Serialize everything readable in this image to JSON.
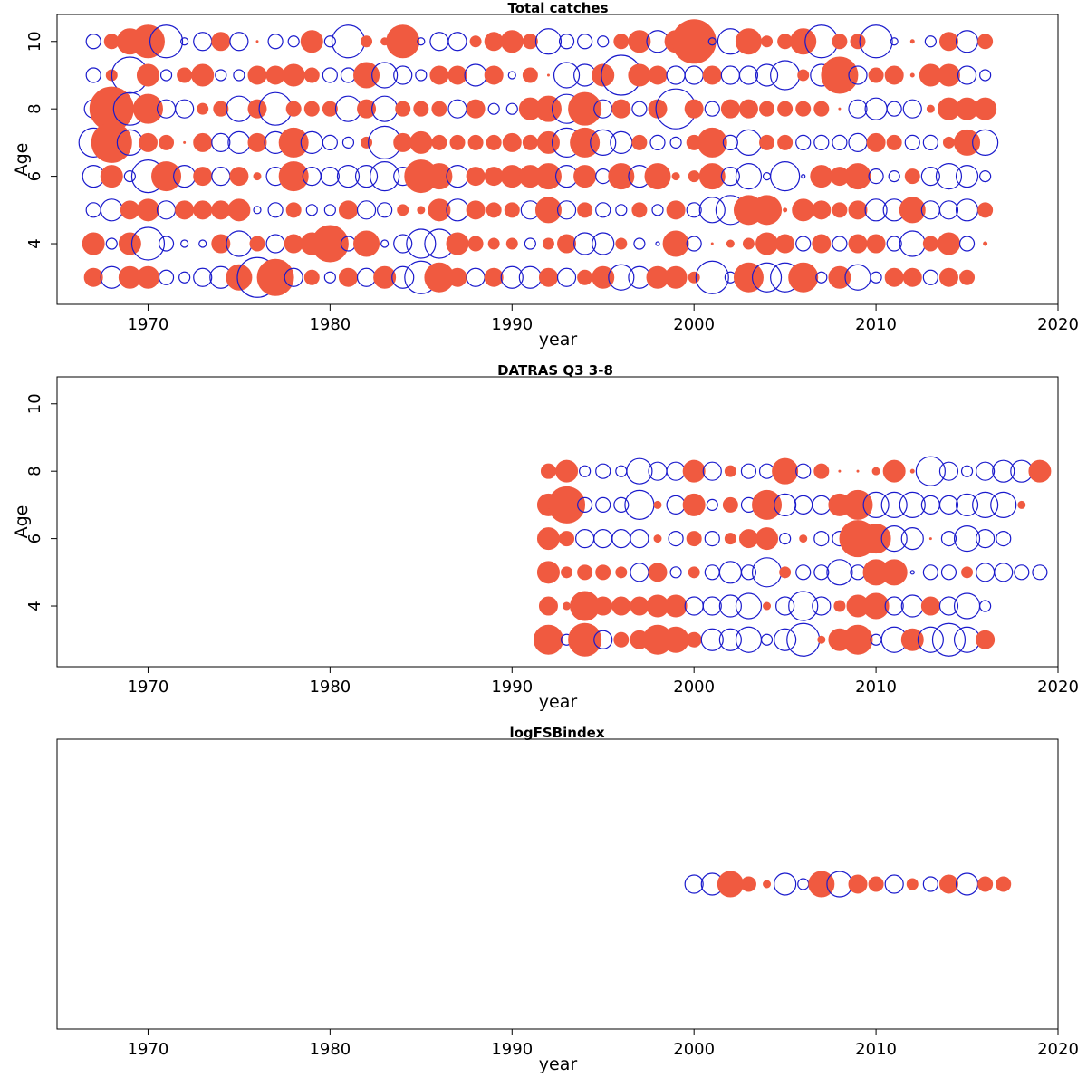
{
  "colors": {
    "positive": "#f05a40",
    "negative": "#1a1acc",
    "axis": "#000000"
  },
  "chart_data": [
    {
      "type": "scatter",
      "title": "Total catches",
      "xlabel": "year",
      "ylabel": "Age",
      "xlim": [
        1965,
        2020
      ],
      "ylim": [
        2.2,
        10.8
      ],
      "xticks": [
        1970,
        1980,
        1990,
        2000,
        2010,
        2020
      ],
      "yticks": [
        4,
        6,
        8,
        10
      ],
      "encoding": "bubble size = |residual|; filled red = positive, open blue = negative",
      "rows": [
        {
          "age": 10,
          "startYear": 1967,
          "values": [
            -0.4,
            0.4,
            0.7,
            0.9,
            -0.9,
            -0.2,
            -0.5,
            0.5,
            -0.5,
            0.05,
            -0.4,
            -0.3,
            0.6,
            -0.3,
            -0.9,
            0.3,
            0.2,
            0.9,
            -0.2,
            -0.5,
            -0.5,
            0.3,
            0.5,
            0.6,
            0.4,
            -0.7,
            -0.4,
            -0.4,
            -0.3,
            0.4,
            0.6,
            -0.6,
            0.6,
            1.2,
            -0.2,
            -0.7,
            0.7,
            0.3,
            0.4,
            0.7,
            -0.9,
            0.4,
            0.4,
            -0.9,
            -0.2,
            0.1,
            -0.3,
            0.5,
            -0.6,
            0.4
          ]
        },
        {
          "age": 9,
          "startYear": 1967,
          "values": [
            -0.4,
            0.3,
            -1.0,
            0.6,
            -0.3,
            0.4,
            0.6,
            -0.3,
            -0.3,
            0.5,
            0.5,
            0.6,
            0.4,
            -0.4,
            -0.4,
            0.7,
            -0.7,
            -0.5,
            -0.3,
            0.5,
            0.5,
            -0.6,
            0.5,
            -0.2,
            0.4,
            0.05,
            -0.7,
            -0.6,
            0.6,
            -1.1,
            0.6,
            0.5,
            -0.5,
            -0.5,
            0.5,
            -0.5,
            -0.5,
            -0.6,
            -0.8,
            0.3,
            -0.6,
            1.0,
            -0.5,
            0.4,
            0.5,
            0.1,
            0.6,
            0.6,
            -0.5,
            -0.3
          ]
        },
        {
          "age": 8,
          "startYear": 1967,
          "values": [
            -0.5,
            1.2,
            -0.9,
            0.8,
            -0.5,
            -0.5,
            0.3,
            0.4,
            -0.7,
            0.5,
            -0.9,
            0.4,
            0.4,
            0.4,
            -0.7,
            0.5,
            -0.7,
            0.4,
            0.4,
            0.4,
            -0.5,
            0.5,
            -0.3,
            -0.3,
            0.6,
            0.7,
            -0.8,
            0.9,
            -0.5,
            0.5,
            -0.4,
            0.5,
            -1.1,
            0.5,
            -0.4,
            0.5,
            0.5,
            0.4,
            0.4,
            0.4,
            0.4,
            0.05,
            -0.5,
            -0.6,
            -0.4,
            -0.5,
            0.2,
            0.6,
            0.6,
            0.6
          ]
        },
        {
          "age": 7,
          "startYear": 1967,
          "values": [
            -0.8,
            1.1,
            -0.7,
            0.5,
            0.4,
            0.05,
            0.5,
            -0.5,
            -0.6,
            0.5,
            -0.6,
            0.8,
            -0.6,
            -0.4,
            -0.3,
            0.3,
            -0.9,
            0.5,
            0.6,
            0.4,
            0.4,
            0.4,
            0.4,
            0.5,
            0.4,
            0.6,
            -0.8,
            0.8,
            -0.7,
            -0.6,
            0.4,
            -0.4,
            -0.3,
            0.4,
            0.8,
            -0.4,
            -0.7,
            0.4,
            0.4,
            -0.4,
            -0.4,
            -0.4,
            -0.5,
            0.5,
            0.4,
            -0.4,
            -0.4,
            0.3,
            0.7,
            -0.7
          ]
        },
        {
          "age": 6,
          "startYear": 1967,
          "values": [
            -0.6,
            0.6,
            -0.3,
            -0.9,
            0.8,
            -0.6,
            0.5,
            -0.5,
            0.5,
            0.2,
            -0.5,
            0.8,
            -0.5,
            -0.5,
            -0.6,
            -0.6,
            -0.8,
            -0.5,
            0.9,
            0.7,
            -0.6,
            0.5,
            0.5,
            0.6,
            0.6,
            0.7,
            -0.6,
            0.6,
            -0.4,
            0.7,
            -0.6,
            0.7,
            0.2,
            0.3,
            0.7,
            -0.5,
            -0.7,
            -0.2,
            -0.8,
            -0.1,
            0.6,
            0.5,
            0.7,
            -0.4,
            -0.3,
            0.4,
            -0.5,
            -0.7,
            -0.6,
            -0.3
          ]
        },
        {
          "age": 5,
          "startYear": 1967,
          "values": [
            -0.4,
            -0.6,
            0.5,
            0.6,
            -0.5,
            0.5,
            0.5,
            0.5,
            0.6,
            -0.2,
            -0.4,
            0.4,
            -0.3,
            -0.3,
            0.5,
            -0.5,
            -0.4,
            0.3,
            0.2,
            0.6,
            -0.6,
            0.5,
            0.4,
            0.4,
            -0.5,
            0.7,
            -0.5,
            0.4,
            -0.4,
            -0.3,
            0.4,
            -0.3,
            0.5,
            -0.4,
            -0.7,
            -0.8,
            0.8,
            0.8,
            0.1,
            0.6,
            0.5,
            0.4,
            0.5,
            -0.6,
            -0.6,
            0.7,
            -0.5,
            -0.5,
            -0.6,
            0.4
          ]
        },
        {
          "age": 4,
          "startYear": 1967,
          "values": [
            0.6,
            -0.3,
            0.6,
            -0.9,
            -0.4,
            -0.2,
            -0.2,
            0.5,
            -0.7,
            0.4,
            -0.5,
            0.5,
            0.6,
            1.0,
            -0.4,
            0.7,
            -0.2,
            -0.5,
            -0.8,
            -0.8,
            0.6,
            0.4,
            0.3,
            0.3,
            -0.3,
            0.3,
            0.5,
            -0.6,
            -0.6,
            0.3,
            -0.3,
            -0.1,
            0.7,
            -0.4,
            0.05,
            0.2,
            0.3,
            0.6,
            0.5,
            -0.4,
            0.5,
            -0.4,
            0.5,
            0.5,
            -0.4,
            -0.7,
            0.4,
            0.6,
            -0.4,
            0.1
          ]
        },
        {
          "age": 3,
          "startYear": 1967,
          "values": [
            0.5,
            -0.6,
            0.6,
            0.6,
            -0.4,
            -0.3,
            -0.5,
            -0.6,
            0.7,
            -1.1,
            1.0,
            -0.5,
            0.4,
            -0.3,
            0.5,
            -0.5,
            0.6,
            -0.6,
            -0.9,
            0.8,
            0.5,
            -0.5,
            0.5,
            -0.6,
            -0.6,
            0.5,
            -0.5,
            0.4,
            0.6,
            -0.7,
            -0.6,
            0.6,
            0.6,
            0.3,
            -0.9,
            -0.3,
            0.8,
            -0.8,
            -0.8,
            0.8,
            -0.3,
            0.6,
            -0.7,
            -0.3,
            0.5,
            0.5,
            -0.4,
            0.5,
            0.4
          ]
        }
      ]
    },
    {
      "type": "scatter",
      "title": "DATRAS Q3 3-8",
      "xlabel": "year",
      "ylabel": "Age",
      "xlim": [
        1965,
        2020
      ],
      "ylim": [
        2.2,
        10.8
      ],
      "xticks": [
        1970,
        1980,
        1990,
        2000,
        2010,
        2020
      ],
      "yticks": [
        4,
        6,
        8,
        10
      ],
      "encoding": "bubble size = |residual|; filled red = positive, open blue = negative",
      "rows": [
        {
          "age": 8,
          "startYear": 1992,
          "values": [
            0.4,
            0.6,
            -0.3,
            -0.4,
            -0.3,
            -0.7,
            -0.5,
            -0.5,
            0.6,
            -0.5,
            0.3,
            -0.4,
            -0.4,
            0.7,
            -0.4,
            0.4,
            0.05,
            0.05,
            0.2,
            0.6,
            0.1,
            -0.8,
            -0.5,
            -0.3,
            -0.5,
            -0.6,
            -0.6,
            0.6
          ]
        },
        {
          "age": 7,
          "startYear": 1992,
          "values": [
            0.6,
            1.0,
            -0.4,
            -0.4,
            -0.4,
            -0.8,
            0.2,
            -0.5,
            0.6,
            -0.3,
            0.4,
            -0.4,
            0.8,
            -0.6,
            -0.5,
            -0.5,
            0.6,
            0.8,
            -0.7,
            -0.7,
            -0.7,
            -0.5,
            -0.5,
            -0.6,
            -0.7,
            -0.7,
            0.2
          ]
        },
        {
          "age": 6,
          "startYear": 1992,
          "values": [
            0.6,
            0.4,
            -0.5,
            -0.5,
            -0.5,
            -0.5,
            0.2,
            -0.4,
            0.4,
            -0.4,
            0.3,
            0.5,
            0.6,
            -0.3,
            0.2,
            -0.4,
            -0.4,
            1.0,
            0.8,
            -0.7,
            -0.6,
            0.05,
            -0.4,
            -0.7,
            -0.5,
            -0.4
          ]
        },
        {
          "age": 5,
          "startYear": 1992,
          "values": [
            0.6,
            0.3,
            0.4,
            0.4,
            0.3,
            -0.5,
            0.5,
            -0.3,
            0.3,
            -0.4,
            -0.6,
            -0.4,
            -0.8,
            0.3,
            -0.4,
            -0.4,
            -0.7,
            -0.4,
            0.7,
            0.7,
            -0.1,
            -0.4,
            -0.4,
            0.3,
            -0.5,
            -0.5,
            -0.4,
            -0.4
          ]
        },
        {
          "age": 4,
          "startYear": 1992,
          "values": [
            0.5,
            0.2,
            0.8,
            0.5,
            0.5,
            0.5,
            0.6,
            0.6,
            -0.5,
            -0.5,
            -0.6,
            -0.7,
            0.2,
            -0.5,
            -0.8,
            -0.5,
            0.3,
            0.6,
            0.7,
            -0.5,
            -0.6,
            0.5,
            -0.5,
            -0.7,
            -0.3
          ]
        },
        {
          "age": 3,
          "startYear": 1992,
          "values": [
            0.8,
            -0.3,
            0.9,
            -0.5,
            0.4,
            0.5,
            0.8,
            0.7,
            0.4,
            -0.6,
            -0.6,
            -0.7,
            -0.3,
            -0.6,
            -0.9,
            0.2,
            0.6,
            0.8,
            -0.3,
            -0.7,
            0.6,
            -0.7,
            -0.9,
            -0.7,
            0.5
          ]
        }
      ]
    },
    {
      "type": "scatter",
      "title": "logFSBindex",
      "xlabel": "year",
      "ylabel": "",
      "xlim": [
        1965,
        2020
      ],
      "xticks": [
        1970,
        1980,
        1990,
        2000,
        2010,
        2020
      ],
      "yticks": [],
      "encoding": "bubble size = |residual|; filled red = positive, open blue = negative",
      "rows": [
        {
          "age": 1,
          "startYear": 2000,
          "values": [
            -0.5,
            -0.6,
            0.7,
            0.4,
            0.2,
            -0.6,
            -0.3,
            0.7,
            -0.7,
            0.5,
            0.4,
            -0.5,
            0.3,
            -0.4,
            0.5,
            -0.6,
            0.4,
            0.4
          ]
        }
      ]
    }
  ]
}
